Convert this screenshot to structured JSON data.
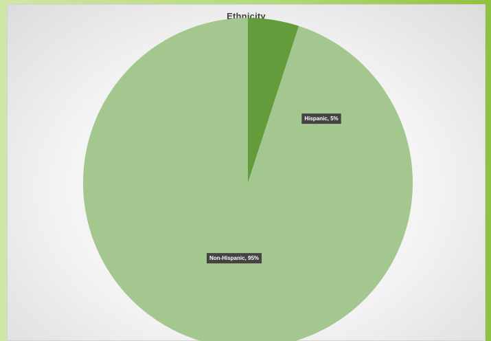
{
  "chart_data": {
    "type": "pie",
    "title": "Ethnicity",
    "slices": [
      {
        "label": "Hispanic",
        "percent": 5,
        "data_label": "Hispanic, 5%",
        "color": "#639C3A"
      },
      {
        "label": "Non-Hispanic",
        "percent": 95,
        "data_label": "Non-Hispanic, 95%",
        "color": "#A4C78F"
      }
    ],
    "legend": "none"
  }
}
